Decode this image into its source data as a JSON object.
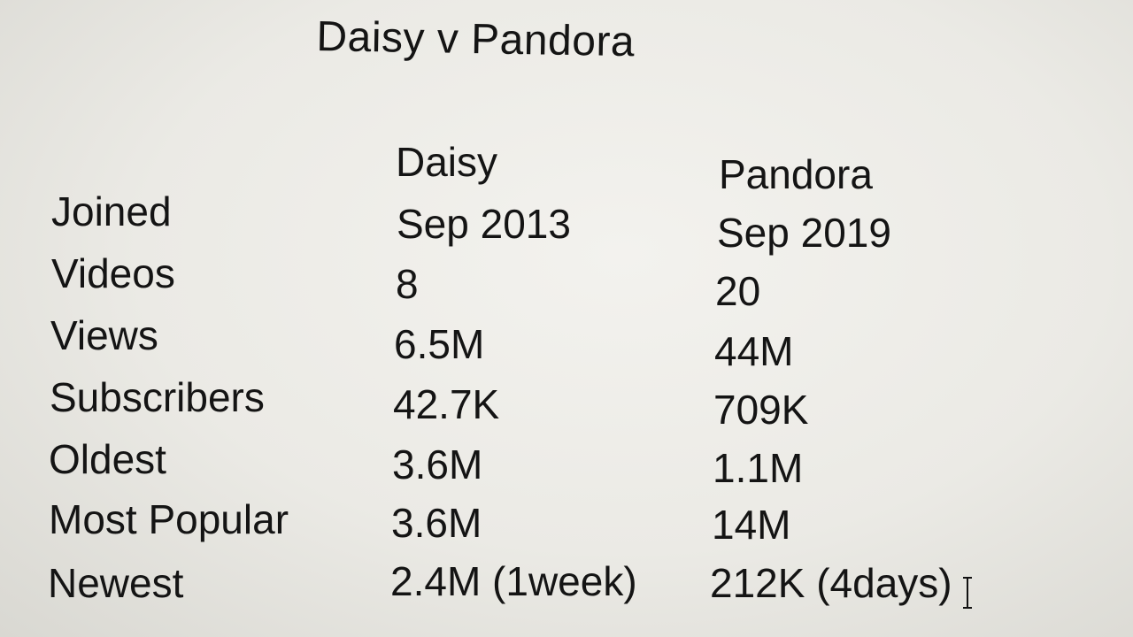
{
  "title": "Daisy v Pandora",
  "columns": {
    "daisy": "Daisy",
    "pandora": "Pandora"
  },
  "rows": [
    {
      "label": "Joined",
      "daisy": "Sep 2013",
      "pandora": "Sep 2019"
    },
    {
      "label": "Videos",
      "daisy": "8",
      "pandora": "20"
    },
    {
      "label": "Views",
      "daisy": "6.5M",
      "pandora": "44M"
    },
    {
      "label": "Subscribers",
      "daisy": "42.7K",
      "pandora": "709K"
    },
    {
      "label": "Oldest",
      "daisy": "3.6M",
      "pandora": "1.1M"
    },
    {
      "label": "Most Popular",
      "daisy": "3.6M",
      "pandora": "14M"
    },
    {
      "label": "Newest",
      "daisy": "2.4M (1week)",
      "pandora": "212K (4days)"
    }
  ],
  "cursor_icon": "text-cursor-icon"
}
